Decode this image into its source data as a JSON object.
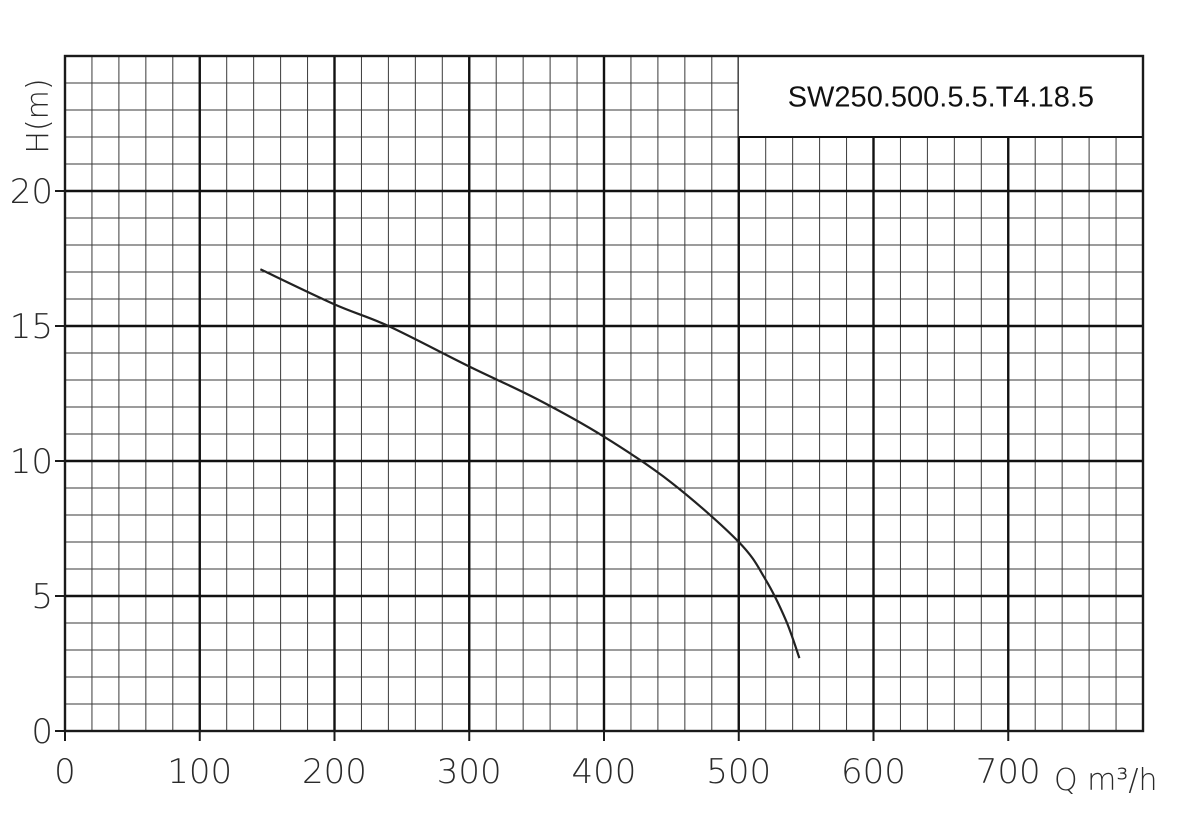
{
  "chart_data": {
    "type": "line",
    "title": "SW250.500.5.5.T4.18.5",
    "xlabel": "Q m³/h",
    "ylabel": "H(m)",
    "xlim": [
      0,
      800
    ],
    "ylim": [
      0,
      25
    ],
    "xticks": [
      "0",
      "100",
      "200",
      "300",
      "400",
      "500",
      "600",
      "700"
    ],
    "yticks": [
      "0",
      "5",
      "10",
      "15",
      "20"
    ],
    "grid": true,
    "series": [
      {
        "x": [
          145,
          200,
          240,
          300,
          350,
          400,
          450,
          500,
          520,
          535,
          545
        ],
        "y": [
          17.1,
          15.8,
          15.0,
          13.5,
          12.3,
          10.9,
          9.2,
          7.0,
          5.6,
          4.1,
          2.7
        ]
      }
    ]
  }
}
